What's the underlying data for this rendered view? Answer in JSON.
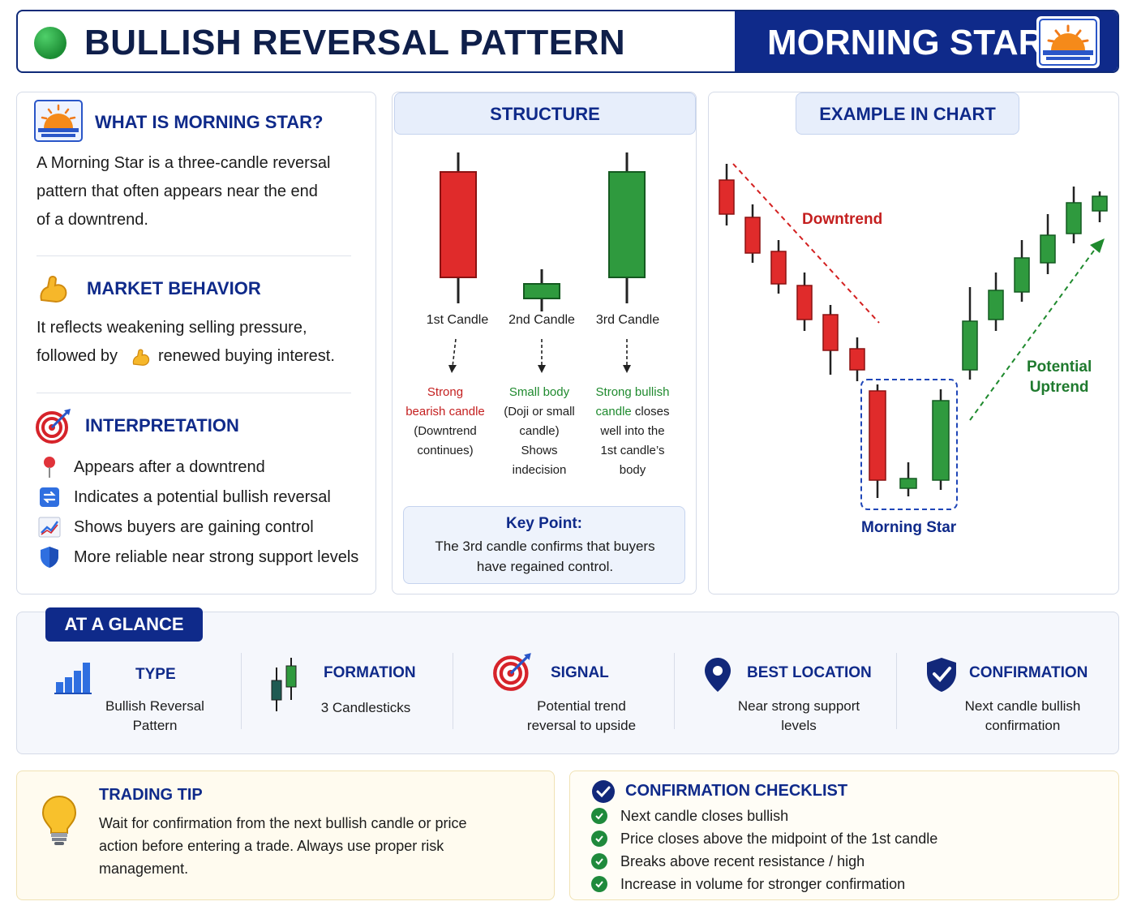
{
  "header": {
    "title": "BULLISH REVERSAL PATTERN",
    "right_title": "MORNING STAR"
  },
  "what": {
    "title": "WHAT IS MORNING STAR?",
    "lines": [
      "A Morning Star is a three-candle reversal",
      "pattern that often appears near the end",
      "of a downtrend."
    ]
  },
  "behavior": {
    "title": "MARKET BEHAVIOR",
    "line1": "It reflects weakening selling pressure,",
    "line2_pre": "followed by",
    "line2_post": "renewed buying interest."
  },
  "interpretation": {
    "title": "INTERPRETATION",
    "items": [
      {
        "icon": "pin-icon",
        "text": "Appears after a downtrend"
      },
      {
        "icon": "reversal-icon",
        "text": "Indicates a potential bullish reversal"
      },
      {
        "icon": "trend-up-icon",
        "text": "Shows buyers are gaining control"
      },
      {
        "icon": "shield-icon",
        "text": "More reliable near strong support levels"
      }
    ]
  },
  "structure": {
    "title": "STRUCTURE",
    "candles": [
      {
        "label": "1st Candle",
        "desc_colored": [
          "Strong",
          "bearish candle"
        ],
        "desc_plain": [
          "(Downtrend",
          "continues)"
        ]
      },
      {
        "label": "2nd Candle",
        "desc_colored": [
          "Small body"
        ],
        "desc_plain": [
          "(Doji or small",
          "candle)",
          "Shows",
          "indecision"
        ]
      },
      {
        "label": "3rd Candle",
        "desc_colored": [
          "Strong bullish",
          "candle"
        ],
        "desc_plain": [
          "closes",
          "well into the",
          "1st candle’s",
          "body"
        ]
      }
    ],
    "key_point_title": "Key Point:",
    "key_point_lines": [
      "The 3rd candle confirms that buyers",
      "have regained control."
    ]
  },
  "example": {
    "title": "EXAMPLE IN CHART",
    "downtrend_label": "Downtrend",
    "uptrend_label_1": "Potential",
    "uptrend_label_2": "Uptrend",
    "pattern_label": "Morning Star"
  },
  "glance": {
    "title": "AT A GLANCE",
    "items": [
      {
        "title": "TYPE",
        "lines": [
          "Bullish Reversal",
          "Pattern"
        ],
        "icon": "bar-chart-icon"
      },
      {
        "title": "FORMATION",
        "lines": [
          "3 Candlesticks"
        ],
        "icon": "candlestick-icon"
      },
      {
        "title": "SIGNAL",
        "lines": [
          "Potential trend",
          "reversal to upside"
        ],
        "icon": "target-icon"
      },
      {
        "title": "BEST LOCATION",
        "lines": [
          "Near strong support",
          "levels"
        ],
        "icon": "location-pin-icon"
      },
      {
        "title": "CONFIRMATION",
        "lines": [
          "Next candle bullish",
          "confirmation"
        ],
        "icon": "shield-check-icon"
      }
    ]
  },
  "tip": {
    "title": "TRADING TIP",
    "lines": [
      "Wait for confirmation from the next bullish candle or price",
      "action before entering a trade. Always use proper risk",
      "management."
    ]
  },
  "checklist": {
    "title": "CONFIRMATION CHECKLIST",
    "items": [
      "Next candle closes bullish",
      "Price closes above the midpoint of the 1st candle",
      "Breaks above recent resistance / high",
      "Increase in volume for stronger confirmation"
    ]
  },
  "colors": {
    "navy": "#0f2a8a",
    "bear": "#e02b2b",
    "bull": "#2f9a3e",
    "bear_text": "#c41f1f",
    "bull_text": "#1f8a2e"
  }
}
